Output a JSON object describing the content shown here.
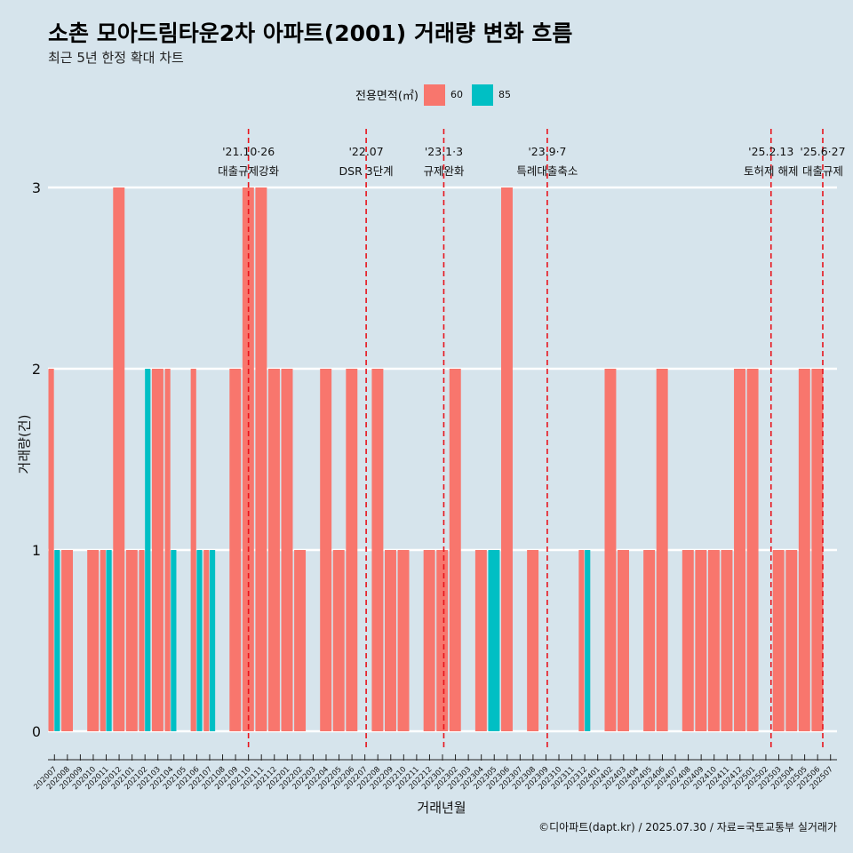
{
  "chart_data": {
    "type": "bar",
    "title": "소촌 모아드림타운2차 아파트(2001) 거래량 변화 흐름",
    "subtitle": "최근 5년 한정 확대 차트",
    "xlabel": "거래년월",
    "ylabel": "거래량(건)",
    "ylim": [
      0,
      3
    ],
    "yticks": [
      0,
      1,
      2,
      3
    ],
    "legend_title": "전용면적(㎡)",
    "categories": [
      "202007",
      "202008",
      "202009",
      "202010",
      "202011",
      "202012",
      "202101",
      "202102",
      "202103",
      "202104",
      "202105",
      "202106",
      "202107",
      "202108",
      "202109",
      "202110",
      "202111",
      "202112",
      "202201",
      "202202",
      "202203",
      "202204",
      "202205",
      "202206",
      "202207",
      "202208",
      "202209",
      "202210",
      "202211",
      "202212",
      "202301",
      "202302",
      "202303",
      "202304",
      "202305",
      "202306",
      "202307",
      "202308",
      "202309",
      "202310",
      "202311",
      "202312",
      "202401",
      "202402",
      "202403",
      "202404",
      "202405",
      "202406",
      "202407",
      "202408",
      "202409",
      "202410",
      "202411",
      "202412",
      "202501",
      "202502",
      "202503",
      "202504",
      "202505",
      "202506",
      "202507"
    ],
    "months": [
      {
        "m": "202007",
        "s": [
          {
            "a": "60",
            "v": 2
          },
          {
            "a": "85",
            "v": 1
          }
        ]
      },
      {
        "m": "202008",
        "s": [
          {
            "a": "60",
            "v": 1
          }
        ]
      },
      {
        "m": "202010",
        "s": [
          {
            "a": "60",
            "v": 1
          }
        ]
      },
      {
        "m": "202011",
        "s": [
          {
            "a": "60",
            "v": 1
          },
          {
            "a": "85",
            "v": 1
          }
        ]
      },
      {
        "m": "202012",
        "s": [
          {
            "a": "60",
            "v": 3
          }
        ]
      },
      {
        "m": "202101",
        "s": [
          {
            "a": "60",
            "v": 1
          }
        ]
      },
      {
        "m": "202102",
        "s": [
          {
            "a": "60",
            "v": 1
          },
          {
            "a": "85",
            "v": 2
          }
        ]
      },
      {
        "m": "202103",
        "s": [
          {
            "a": "60",
            "v": 2
          }
        ]
      },
      {
        "m": "202104",
        "s": [
          {
            "a": "60",
            "v": 2
          },
          {
            "a": "85",
            "v": 1
          }
        ]
      },
      {
        "m": "202106",
        "s": [
          {
            "a": "60",
            "v": 2
          },
          {
            "a": "85",
            "v": 1
          }
        ]
      },
      {
        "m": "202107",
        "s": [
          {
            "a": "60",
            "v": 1
          },
          {
            "a": "85",
            "v": 1
          }
        ]
      },
      {
        "m": "202109",
        "s": [
          {
            "a": "60",
            "v": 2
          }
        ]
      },
      {
        "m": "202110",
        "s": [
          {
            "a": "60",
            "v": 3
          }
        ]
      },
      {
        "m": "202111",
        "s": [
          {
            "a": "60",
            "v": 3
          }
        ]
      },
      {
        "m": "202112",
        "s": [
          {
            "a": "60",
            "v": 2
          }
        ]
      },
      {
        "m": "202201",
        "s": [
          {
            "a": "60",
            "v": 2
          }
        ]
      },
      {
        "m": "202202",
        "s": [
          {
            "a": "60",
            "v": 1
          }
        ]
      },
      {
        "m": "202204",
        "s": [
          {
            "a": "60",
            "v": 2
          }
        ]
      },
      {
        "m": "202205",
        "s": [
          {
            "a": "60",
            "v": 1
          }
        ]
      },
      {
        "m": "202206",
        "s": [
          {
            "a": "60",
            "v": 2
          }
        ]
      },
      {
        "m": "202208",
        "s": [
          {
            "a": "60",
            "v": 2
          }
        ]
      },
      {
        "m": "202209",
        "s": [
          {
            "a": "60",
            "v": 1
          }
        ]
      },
      {
        "m": "202210",
        "s": [
          {
            "a": "60",
            "v": 1
          }
        ]
      },
      {
        "m": "202212",
        "s": [
          {
            "a": "60",
            "v": 1
          }
        ]
      },
      {
        "m": "202301",
        "s": [
          {
            "a": "60",
            "v": 1
          }
        ]
      },
      {
        "m": "202302",
        "s": [
          {
            "a": "60",
            "v": 2
          }
        ]
      },
      {
        "m": "202304",
        "s": [
          {
            "a": "60",
            "v": 1
          }
        ]
      },
      {
        "m": "202305",
        "s": [
          {
            "a": "85",
            "v": 1
          }
        ]
      },
      {
        "m": "202306",
        "s": [
          {
            "a": "60",
            "v": 3
          }
        ]
      },
      {
        "m": "202308",
        "s": [
          {
            "a": "60",
            "v": 1
          }
        ]
      },
      {
        "m": "202312",
        "s": [
          {
            "a": "60",
            "v": 1
          },
          {
            "a": "85",
            "v": 1
          }
        ]
      },
      {
        "m": "202402",
        "s": [
          {
            "a": "60",
            "v": 2
          }
        ]
      },
      {
        "m": "202403",
        "s": [
          {
            "a": "60",
            "v": 1
          }
        ]
      },
      {
        "m": "202405",
        "s": [
          {
            "a": "60",
            "v": 1
          }
        ]
      },
      {
        "m": "202406",
        "s": [
          {
            "a": "60",
            "v": 2
          }
        ]
      },
      {
        "m": "202408",
        "s": [
          {
            "a": "60",
            "v": 1
          }
        ]
      },
      {
        "m": "202409",
        "s": [
          {
            "a": "60",
            "v": 1
          }
        ]
      },
      {
        "m": "202410",
        "s": [
          {
            "a": "60",
            "v": 1
          }
        ]
      },
      {
        "m": "202411",
        "s": [
          {
            "a": "60",
            "v": 1
          }
        ]
      },
      {
        "m": "202412",
        "s": [
          {
            "a": "60",
            "v": 2
          }
        ]
      },
      {
        "m": "202501",
        "s": [
          {
            "a": "60",
            "v": 2
          }
        ]
      },
      {
        "m": "202503",
        "s": [
          {
            "a": "60",
            "v": 1
          }
        ]
      },
      {
        "m": "202504",
        "s": [
          {
            "a": "60",
            "v": 1
          }
        ]
      },
      {
        "m": "202505",
        "s": [
          {
            "a": "60",
            "v": 2
          }
        ]
      },
      {
        "m": "202506",
        "s": [
          {
            "a": "60",
            "v": 2
          }
        ]
      }
    ],
    "events": [
      {
        "pos": 15.0,
        "date": "'21.10·26",
        "label": "대출규제강화"
      },
      {
        "pos": 24.1,
        "date": "'22.07",
        "label": "DSR 3단계"
      },
      {
        "pos": 30.1,
        "date": "'23.1·3",
        "label": "규제완화"
      },
      {
        "pos": 38.1,
        "date": "'23.9·7",
        "label": "특례대출축소"
      },
      {
        "pos": 55.4,
        "date": "'25.2.13",
        "label": "토허제 해제"
      },
      {
        "pos": 59.4,
        "date": "'25.6·27",
        "label": "대출규제"
      }
    ],
    "legend": [
      {
        "name": "60",
        "color": "#f8766d"
      },
      {
        "name": "85",
        "color": "#00bfc4"
      }
    ]
  },
  "caption": "©디아파트(dapt.kr) / 2025.07.30 / 자료=국토교통부 실거래가"
}
